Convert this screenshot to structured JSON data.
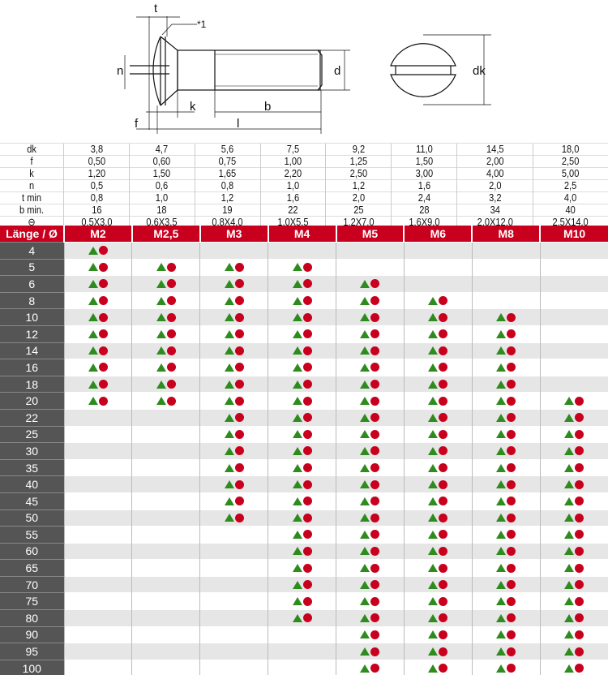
{
  "drawing": {
    "labels": {
      "t": "t",
      "note": "*1",
      "n": "n",
      "d": "d",
      "k": "k",
      "b": "b",
      "f": "f",
      "l": "l",
      "dk": "dk"
    }
  },
  "spec": {
    "rows": [
      {
        "label": "dk",
        "values": [
          "3,8",
          "4,7",
          "5,6",
          "7,5",
          "9,2",
          "11,0",
          "14,5",
          "18,0"
        ]
      },
      {
        "label": "f",
        "values": [
          "0,50",
          "0,60",
          "0,75",
          "1,00",
          "1,25",
          "1,50",
          "2,00",
          "2,50"
        ]
      },
      {
        "label": "k",
        "values": [
          "1,20",
          "1,50",
          "1,65",
          "2,20",
          "2,50",
          "3,00",
          "4,00",
          "5,00"
        ]
      },
      {
        "label": "n",
        "values": [
          "0,5",
          "0,6",
          "0,8",
          "1,0",
          "1,2",
          "1,6",
          "2,0",
          "2,5"
        ]
      },
      {
        "label": "t min",
        "values": [
          "0,8",
          "1,0",
          "1,2",
          "1,6",
          "2,0",
          "2,4",
          "3,2",
          "4,0"
        ]
      },
      {
        "label": "b min.",
        "values": [
          "16",
          "18",
          "19",
          "22",
          "25",
          "28",
          "34",
          "40"
        ]
      },
      {
        "label": "⊖",
        "values": [
          "0,5X3,0",
          "0,6X3,5",
          "0,8X4,0",
          "1,0X5,5",
          "1,2X7,0",
          "1,6X9,0",
          "2,0X12,0",
          "2,5X14,0"
        ]
      }
    ]
  },
  "grid": {
    "header_label": "Länge / Ø",
    "sizes": [
      "M2",
      "M2,5",
      "M3",
      "M4",
      "M5",
      "M6",
      "M8",
      "M10"
    ],
    "lengths": [
      "4",
      "5",
      "6",
      "8",
      "10",
      "12",
      "14",
      "16",
      "18",
      "20",
      "22",
      "25",
      "30",
      "35",
      "40",
      "45",
      "50",
      "55",
      "60",
      "65",
      "70",
      "75",
      "80",
      "90",
      "95",
      "100"
    ],
    "availability_range": [
      [
        "4",
        "20"
      ],
      [
        "5",
        "20"
      ],
      [
        "5",
        "50"
      ],
      [
        "5",
        "80"
      ],
      [
        "6",
        "100"
      ],
      [
        "8",
        "100"
      ],
      [
        "10",
        "100"
      ],
      [
        "20",
        "100"
      ]
    ],
    "icons": [
      "green-triangle-icon",
      "red-circle-icon"
    ]
  },
  "colors": {
    "header_red": "#c8001e",
    "triangle_green": "#2e8b1e",
    "circle_red": "#c8001e",
    "label_bg": "#555555"
  }
}
